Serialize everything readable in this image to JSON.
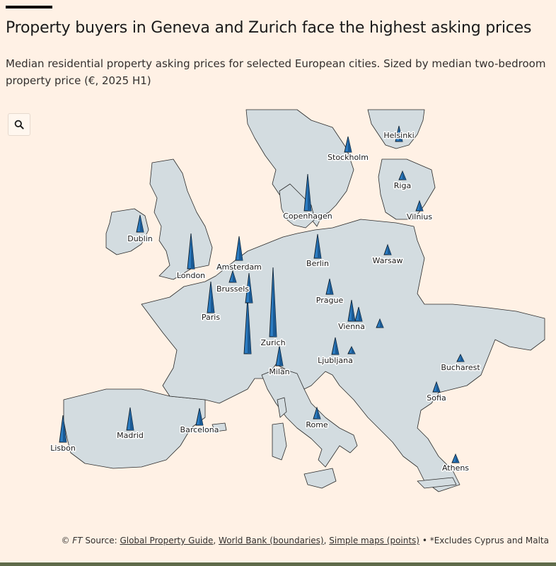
{
  "header": {
    "title": "Property buyers in Geneva and Zurich face the highest asking prices",
    "subtitle": "Median residential property asking prices for selected European cities. Sized by median two-bedroom property price (€, 2025 H1)"
  },
  "map": {
    "search_icon": "search-icon",
    "colors": {
      "land": "#d3dce0",
      "spike": "#2b7bc0",
      "background": "#fff1e5"
    },
    "cities": [
      {
        "name": "Helsinki",
        "label": "Helsinki"
      },
      {
        "name": "Stockholm",
        "label": "Stockholm"
      },
      {
        "name": "Riga",
        "label": "Riga"
      },
      {
        "name": "Vilnius",
        "label": "Vilnius"
      },
      {
        "name": "Copenhagen",
        "label": "Copenhagen"
      },
      {
        "name": "Dublin",
        "label": "Dublin"
      },
      {
        "name": "London",
        "label": "London"
      },
      {
        "name": "Amsterdam",
        "label": "Amsterdam"
      },
      {
        "name": "Berlin",
        "label": "Berlin"
      },
      {
        "name": "Warsaw",
        "label": "Warsaw"
      },
      {
        "name": "Brussels",
        "label": "Brussels"
      },
      {
        "name": "Prague",
        "label": "Prague"
      },
      {
        "name": "Paris",
        "label": "Paris"
      },
      {
        "name": "Vienna",
        "label": "Vienna"
      },
      {
        "name": "Zurich",
        "label": "Zurich"
      },
      {
        "name": "Ljubljana",
        "label": "Ljubljana"
      },
      {
        "name": "Milan",
        "label": "Milan"
      },
      {
        "name": "Bucharest",
        "label": "Bucharest"
      },
      {
        "name": "Sofia",
        "label": "Sofia"
      },
      {
        "name": "Barcelona",
        "label": "Barcelona"
      },
      {
        "name": "Madrid",
        "label": "Madrid"
      },
      {
        "name": "Rome",
        "label": "Rome"
      },
      {
        "name": "Lisbon",
        "label": "Lisbon"
      },
      {
        "name": "Athens",
        "label": "Athens"
      }
    ]
  },
  "footer": {
    "copyright": "©",
    "ft": "FT",
    "source_label": "Source:",
    "source1": "Global Property Guide",
    "source2": "World Bank (boundaries)",
    "source3": "Simple maps (points)",
    "bullet": "•",
    "note": "*Excludes Cyprus and Malta"
  }
}
